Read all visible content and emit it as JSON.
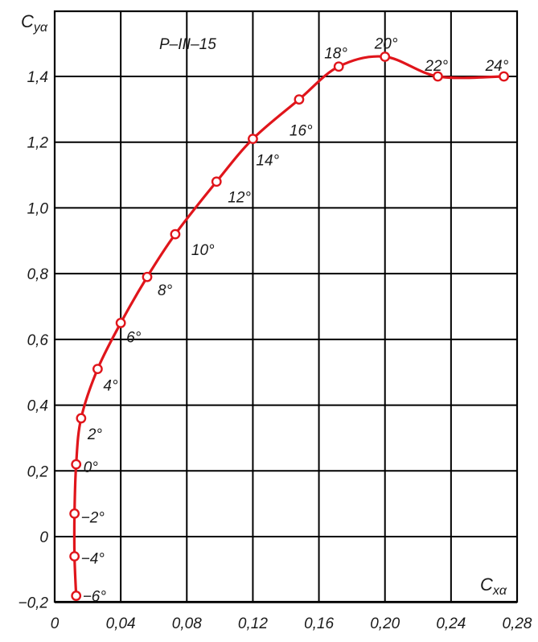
{
  "chart_data": {
    "type": "line",
    "title": "P–III–15",
    "ylabel": {
      "main": "C",
      "sub": "yα"
    },
    "xlabel": {
      "main": "C",
      "sub": "xα"
    },
    "xlim": [
      0,
      0.28
    ],
    "ylim": [
      -0.2,
      1.5
    ],
    "x_ticks": [
      0,
      0.04,
      0.08,
      0.12,
      0.16,
      0.2,
      0.24,
      0.28
    ],
    "x_tick_labels": [
      "0",
      "0,04",
      "0,08",
      "0,12",
      "0,16",
      "0,20",
      "0,24",
      "0,28"
    ],
    "y_ticks": [
      -0.2,
      0,
      0.2,
      0.4,
      0.6,
      0.8,
      1.0,
      1.2,
      1.4
    ],
    "y_tick_labels": [
      "−0,2",
      "0",
      "0,2",
      "0,4",
      "0,6",
      "0,8",
      "1,0",
      "1,2",
      "1,4"
    ],
    "grid": true,
    "line_color": "#e0151b",
    "series": [
      {
        "points": [
          {
            "x": 0.013,
            "y": -0.18,
            "label": "−6°"
          },
          {
            "x": 0.012,
            "y": -0.06,
            "label": "−4°"
          },
          {
            "x": 0.012,
            "y": 0.07,
            "label": "−2°"
          },
          {
            "x": 0.013,
            "y": 0.22,
            "label": "0°"
          },
          {
            "x": 0.016,
            "y": 0.36,
            "label": "2°"
          },
          {
            "x": 0.026,
            "y": 0.51,
            "label": "4°"
          },
          {
            "x": 0.04,
            "y": 0.65,
            "label": "6°"
          },
          {
            "x": 0.056,
            "y": 0.79,
            "label": "8°"
          },
          {
            "x": 0.073,
            "y": 0.92,
            "label": "10°"
          },
          {
            "x": 0.098,
            "y": 1.08,
            "label": "12°"
          },
          {
            "x": 0.12,
            "y": 1.21,
            "label": "14°"
          },
          {
            "x": 0.148,
            "y": 1.33,
            "label": "16°"
          },
          {
            "x": 0.172,
            "y": 1.43,
            "label": "18°"
          },
          {
            "x": 0.2,
            "y": 1.46,
            "label": "20°"
          },
          {
            "x": 0.232,
            "y": 1.4,
            "label": "22°"
          },
          {
            "x": 0.272,
            "y": 1.4,
            "label": "24°"
          }
        ]
      }
    ]
  }
}
